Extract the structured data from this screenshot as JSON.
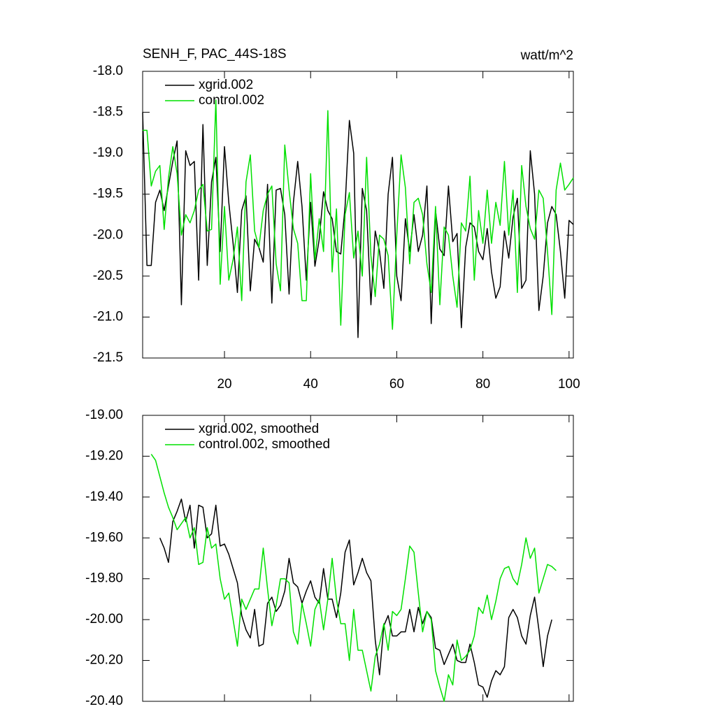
{
  "chart_data": [
    {
      "type": "line",
      "title": "SENH_F, PAC_44S-18S",
      "units": "watt/m^2",
      "x": [
        1,
        2,
        3,
        4,
        5,
        6,
        7,
        8,
        9,
        10,
        11,
        12,
        13,
        14,
        15,
        16,
        17,
        18,
        19,
        20,
        21,
        22,
        23,
        24,
        25,
        26,
        27,
        28,
        29,
        30,
        31,
        32,
        33,
        34,
        35,
        36,
        37,
        38,
        39,
        40,
        41,
        42,
        43,
        44,
        45,
        46,
        47,
        48,
        49,
        50,
        51,
        52,
        53,
        54,
        55,
        56,
        57,
        58,
        59,
        60,
        61,
        62,
        63,
        64,
        65,
        66,
        67,
        68,
        69,
        70,
        71,
        72,
        73,
        74,
        75,
        76,
        77,
        78,
        79,
        80,
        81,
        82,
        83,
        84,
        85,
        86,
        87,
        88,
        89,
        90,
        91,
        92,
        93,
        94,
        95,
        96,
        97,
        98,
        99,
        100,
        101
      ],
      "series": [
        {
          "name": "xgrid.002",
          "color": "#000000",
          "values": [
            -18.5,
            -20.37,
            -20.37,
            -19.6,
            -19.45,
            -19.7,
            -19.4,
            -19.1,
            -18.85,
            -20.85,
            -18.97,
            -19.15,
            -19.1,
            -20.55,
            -18.65,
            -20.37,
            -19.35,
            -19.05,
            -20.2,
            -18.92,
            -19.6,
            -20.1,
            -20.7,
            -19.7,
            -19.52,
            -20.68,
            -20.05,
            -20.15,
            -20.33,
            -19.38,
            -20.83,
            -19.45,
            -19.43,
            -19.75,
            -20.72,
            -19.6,
            -19.1,
            -19.65,
            -20.55,
            -19.6,
            -20.38,
            -20.05,
            -19.47,
            -19.7,
            -19.8,
            -20.2,
            -20.23,
            -19.65,
            -18.6,
            -19.0,
            -21.25,
            -19.43,
            -19.7,
            -20.85,
            -19.95,
            -20.2,
            -20.65,
            -19.5,
            -19.05,
            -20.5,
            -20.8,
            -19.8,
            -20.2,
            -19.75,
            -20.2,
            -20.0,
            -19.4,
            -21.08,
            -19.7,
            -20.17,
            -20.25,
            -19.4,
            -20.08,
            -19.98,
            -21.13,
            -20.15,
            -19.85,
            -19.9,
            -20.2,
            -20.3,
            -19.92,
            -20.45,
            -20.77,
            -20.63,
            -19.95,
            -20.28,
            -19.78,
            -19.55,
            -20.65,
            -20.55,
            -18.97,
            -19.5,
            -20.92,
            -20.5,
            -19.85,
            -19.65,
            -19.75,
            -20.2,
            -20.77,
            -19.82,
            -19.87
          ]
        },
        {
          "name": "control.002",
          "color": "#00e000",
          "values": [
            -18.72,
            -18.72,
            -19.4,
            -19.22,
            -19.15,
            -19.93,
            -19.3,
            -18.92,
            -19.25,
            -20.0,
            -19.75,
            -19.85,
            -19.7,
            -19.45,
            -19.38,
            -19.95,
            -19.93,
            -18.35,
            -20.6,
            -19.65,
            -20.55,
            -20.3,
            -19.9,
            -20.8,
            -19.35,
            -19.02,
            -19.95,
            -20.15,
            -19.7,
            -19.5,
            -19.4,
            -20.35,
            -20.68,
            -18.9,
            -19.45,
            -19.92,
            -20.1,
            -20.8,
            -20.8,
            -19.25,
            -20.3,
            -19.8,
            -20.2,
            -18.48,
            -20.45,
            -19.68,
            -21.1,
            -19.75,
            -19.48,
            -20.28,
            -19.95,
            -20.5,
            -19.05,
            -20.25,
            -20.75,
            -20.0,
            -20.05,
            -20.25,
            -21.15,
            -20.0,
            -19.02,
            -19.42,
            -20.35,
            -19.6,
            -19.55,
            -19.75,
            -20.35,
            -20.7,
            -19.65,
            -20.85,
            -19.9,
            -20.0,
            -20.5,
            -20.88,
            -19.85,
            -19.95,
            -19.28,
            -20.55,
            -19.7,
            -20.1,
            -19.45,
            -20.1,
            -19.6,
            -19.88,
            -19.1,
            -20.0,
            -19.45,
            -20.7,
            -19.15,
            -19.65,
            -19.92,
            -20.05,
            -19.45,
            -19.55,
            -20.2,
            -20.97,
            -19.45,
            -19.12,
            -19.45,
            -19.38,
            -19.3
          ]
        }
      ],
      "xlim": [
        1,
        101
      ],
      "xticks": [
        20,
        40,
        60,
        80,
        100
      ],
      "show_xtick_labels": true,
      "ylim": [
        -21.5,
        -18.0
      ],
      "yticks": [
        {
          "value": -18.0,
          "label": "-18.0"
        },
        -18.5,
        {
          "value": -19.0,
          "label": "-19.0"
        },
        -19.5,
        {
          "value": -20.0,
          "label": "-20.0"
        },
        -20.5,
        {
          "value": -21.0,
          "label": "-21.0"
        },
        -21.5
      ]
    },
    {
      "type": "line",
      "x": [
        3,
        4,
        5,
        6,
        7,
        8,
        9,
        10,
        11,
        12,
        13,
        14,
        15,
        16,
        17,
        18,
        19,
        20,
        21,
        22,
        23,
        24,
        25,
        26,
        27,
        28,
        29,
        30,
        31,
        32,
        33,
        34,
        35,
        36,
        37,
        38,
        39,
        40,
        41,
        42,
        43,
        44,
        45,
        46,
        47,
        48,
        49,
        50,
        51,
        52,
        53,
        54,
        55,
        56,
        57,
        58,
        59,
        60,
        61,
        62,
        63,
        64,
        65,
        66,
        67,
        68,
        69,
        70,
        71,
        72,
        73,
        74,
        75,
        76,
        77,
        78,
        79,
        80,
        81,
        82,
        83,
        84,
        85,
        86,
        87,
        88,
        89,
        90,
        91,
        92,
        93,
        94,
        95,
        96,
        97
      ],
      "series": [
        {
          "name": "xgrid.002, smoothed",
          "color": "#000000",
          "values": [
            null,
            null,
            -19.6,
            -19.65,
            -19.72,
            -19.52,
            -19.47,
            -19.41,
            -19.52,
            -19.44,
            -19.65,
            -19.44,
            -19.45,
            -19.6,
            -19.58,
            -19.44,
            -19.64,
            -19.63,
            -19.68,
            -19.75,
            -19.82,
            -19.98,
            -20.05,
            -20.09,
            -19.95,
            -20.13,
            -20.12,
            -19.92,
            -19.89,
            -19.96,
            -19.93,
            -19.86,
            -19.7,
            -19.82,
            -19.84,
            -19.92,
            -19.86,
            -19.81,
            -19.89,
            -19.92,
            -19.75,
            -19.9,
            -19.9,
            -19.99,
            -19.87,
            -19.67,
            -19.61,
            -19.83,
            -19.77,
            -19.7,
            -19.77,
            -19.81,
            -20.1,
            -20.27,
            -20.03,
            -19.98,
            -20.08,
            -20.08,
            -20.06,
            -20.06,
            -19.95,
            -20.06,
            -19.94,
            -20.02,
            -19.96,
            -19.99,
            -20.14,
            -20.15,
            -20.22,
            -20.17,
            -20.12,
            -20.2,
            -20.21,
            -20.21,
            -20.12,
            -20.21,
            -20.32,
            -20.33,
            -20.38,
            -20.3,
            -20.25,
            -20.27,
            -20.23,
            -19.99,
            -19.95,
            -19.99,
            -20.08,
            -20.12,
            -19.98,
            -19.89,
            -20.05,
            -20.23,
            -20.08,
            -20.0,
            null
          ]
        },
        {
          "name": "control.002, smoothed",
          "color": "#00e000",
          "values": [
            -19.19,
            -19.22,
            -19.3,
            -19.38,
            -19.45,
            -19.5,
            -19.56,
            -19.53,
            -19.5,
            -19.6,
            -19.55,
            -19.73,
            -19.72,
            -19.55,
            -19.65,
            -19.63,
            -19.8,
            -19.9,
            -19.87,
            -20.0,
            -20.13,
            -19.9,
            -19.95,
            -19.9,
            -19.85,
            -19.85,
            -19.65,
            -19.85,
            -20.03,
            -19.93,
            -19.8,
            -19.8,
            -19.82,
            -20.06,
            -20.12,
            -19.92,
            -20.02,
            -20.13,
            -19.95,
            -19.9,
            -20.05,
            -19.9,
            -19.7,
            -19.9,
            -20.02,
            -20.02,
            -20.2,
            -19.95,
            -20.15,
            -20.15,
            -20.25,
            -20.35,
            -20.18,
            -20.12,
            -20.02,
            -20.15,
            -19.96,
            -19.98,
            -19.95,
            -19.8,
            -19.64,
            -19.67,
            -19.87,
            -20.06,
            -19.96,
            -20.0,
            -20.25,
            -20.33,
            -20.4,
            -20.27,
            -20.32,
            -20.1,
            -20.2,
            -20.18,
            -20.15,
            -20.08,
            -19.94,
            -19.97,
            -19.88,
            -20.0,
            -19.91,
            -19.8,
            -19.75,
            -19.74,
            -19.8,
            -19.83,
            -19.73,
            -19.6,
            -19.7,
            -19.65,
            -19.87,
            -19.8,
            -19.73,
            -19.74,
            -19.76
          ]
        }
      ],
      "xlim": [
        1,
        101
      ],
      "xticks": [
        20,
        40,
        60,
        80,
        100
      ],
      "show_xtick_labels": false,
      "ylim": [
        -20.4,
        -19.0
      ],
      "yticks": [
        {
          "value": -19.0,
          "label": "-19.00"
        },
        {
          "value": -19.2,
          "label": "-19.20"
        },
        {
          "value": -19.4,
          "label": "-19.40"
        },
        {
          "value": -19.6,
          "label": "-19.60"
        },
        {
          "value": -19.8,
          "label": "-19.80"
        },
        {
          "value": -20.0,
          "label": "-20.00"
        },
        {
          "value": -20.2,
          "label": "-20.20"
        },
        {
          "value": -20.4,
          "label": "-20.40"
        }
      ]
    }
  ]
}
